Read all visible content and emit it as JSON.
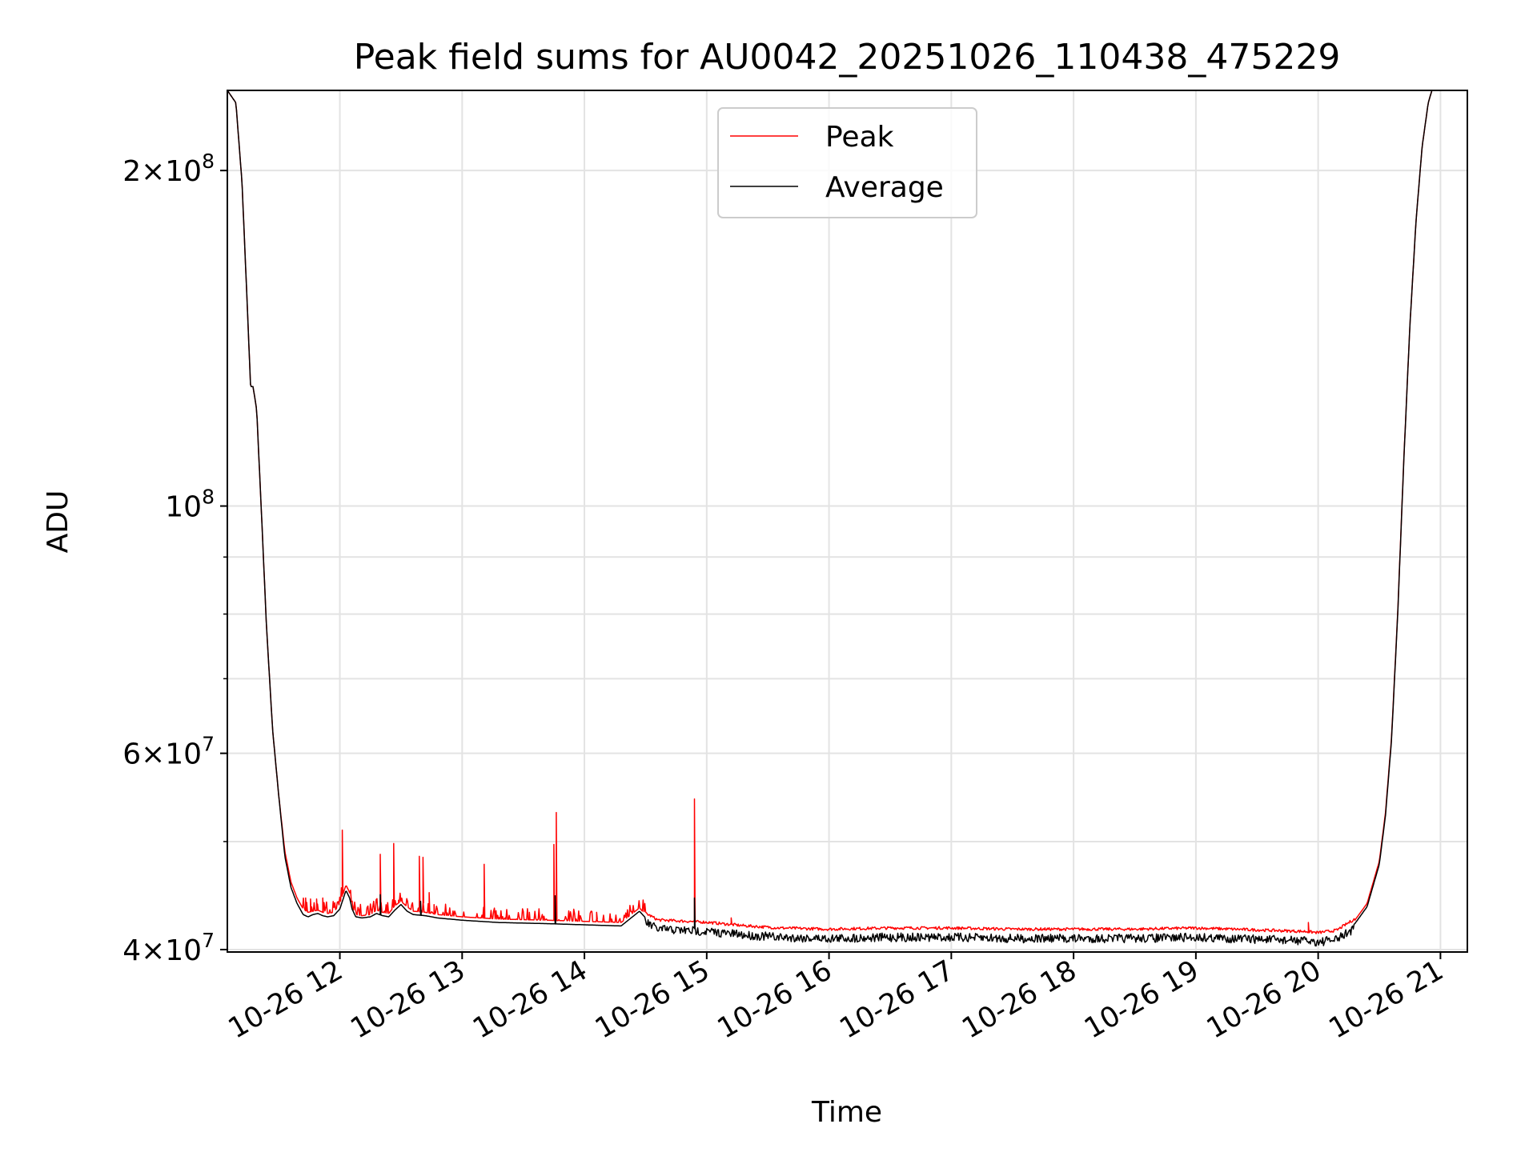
{
  "chart_data": {
    "type": "line",
    "title": "Peak field sums for AU0042_20251026_110438_475229",
    "xlabel": "Time",
    "ylabel": "ADU",
    "yscale": "log",
    "xlim": [
      11.08,
      21.22
    ],
    "ylim": [
      39800000,
      236000000
    ],
    "grid": true,
    "legend": {
      "placement": "upper-center",
      "entries": [
        "Peak",
        "Average"
      ]
    },
    "x_ticks": [
      {
        "value": 12,
        "label": "10-26 12"
      },
      {
        "value": 13,
        "label": "10-26 13"
      },
      {
        "value": 14,
        "label": "10-26 14"
      },
      {
        "value": 15,
        "label": "10-26 15"
      },
      {
        "value": 16,
        "label": "10-26 16"
      },
      {
        "value": 17,
        "label": "10-26 17"
      },
      {
        "value": 18,
        "label": "10-26 18"
      },
      {
        "value": 19,
        "label": "10-26 19"
      },
      {
        "value": 20,
        "label": "10-26 20"
      },
      {
        "value": 21,
        "label": "10-26 21"
      }
    ],
    "y_major_ticks": [
      {
        "value": 40000000,
        "mant": "4",
        "exp": "7"
      },
      {
        "value": 60000000,
        "mant": "6",
        "exp": "7"
      },
      {
        "value": 100000000,
        "mant": "",
        "exp": "8"
      },
      {
        "value": 200000000,
        "mant": "2",
        "exp": "8"
      }
    ],
    "y_minor_ticks": [
      50000000,
      70000000,
      80000000,
      90000000
    ],
    "series": [
      {
        "name": "Peak",
        "color": "#ff0000",
        "x": [
          11.08,
          11.15,
          11.2,
          11.25,
          11.27,
          11.29,
          11.32,
          11.36,
          11.4,
          11.45,
          11.5,
          11.55,
          11.6,
          11.65,
          11.7,
          11.74,
          11.78,
          11.82,
          11.86,
          11.9,
          11.95,
          12.0,
          12.05,
          12.08,
          12.1,
          12.13,
          12.18,
          12.25,
          12.3,
          12.35,
          12.4,
          12.45,
          12.5,
          12.55,
          12.6,
          12.7,
          12.8,
          13.0,
          13.3,
          13.7,
          14.0,
          14.3,
          14.45,
          14.5,
          14.6,
          14.8,
          15.0,
          15.3,
          15.6,
          16.0,
          16.5,
          17.0,
          17.5,
          18.0,
          18.5,
          19.0,
          19.3,
          19.6,
          19.9,
          20.0,
          20.15,
          20.3,
          20.4,
          20.5,
          20.55,
          20.6,
          20.65,
          20.7,
          20.75,
          20.8,
          20.85,
          20.9,
          20.93,
          20.96,
          21.22
        ],
        "y": [
          236000000,
          230000000,
          195000000,
          145000000,
          128000000,
          128000000,
          122000000,
          98000000,
          78000000,
          63000000,
          55000000,
          49000000,
          46000000,
          44500000,
          43500000,
          43200000,
          43300000,
          43400000,
          43200000,
          43100000,
          43200000,
          44000000,
          45700000,
          45000000,
          43800000,
          43000000,
          42900000,
          43000000,
          43400000,
          43200000,
          43100000,
          43800000,
          44200000,
          43700000,
          43300000,
          43200000,
          43000000,
          42800000,
          42600000,
          42500000,
          42400000,
          42300000,
          43600000,
          43000000,
          42400000,
          42300000,
          42200000,
          41900000,
          41700000,
          41600000,
          41700000,
          41700000,
          41600000,
          41600000,
          41600000,
          41700000,
          41600000,
          41500000,
          41400000,
          41300000,
          41500000,
          42500000,
          44000000,
          48000000,
          53000000,
          62000000,
          80000000,
          110000000,
          145000000,
          180000000,
          210000000,
          230000000,
          236000000,
          236000000,
          236000000
        ],
        "spikes": [
          {
            "x": 11.72,
            "y": 44500000
          },
          {
            "x": 11.76,
            "y": 44400000
          },
          {
            "x": 11.81,
            "y": 44400000
          },
          {
            "x": 11.86,
            "y": 44500000
          },
          {
            "x": 12.02,
            "y": 51200000
          },
          {
            "x": 12.33,
            "y": 48700000
          },
          {
            "x": 12.44,
            "y": 49800000
          },
          {
            "x": 12.48,
            "y": 44300000
          },
          {
            "x": 12.65,
            "y": 48500000
          },
          {
            "x": 12.68,
            "y": 48400000
          },
          {
            "x": 12.73,
            "y": 45000000
          },
          {
            "x": 12.77,
            "y": 43900000
          },
          {
            "x": 13.18,
            "y": 47700000
          },
          {
            "x": 13.55,
            "y": 43200000
          },
          {
            "x": 13.75,
            "y": 49700000
          },
          {
            "x": 13.77,
            "y": 53100000
          },
          {
            "x": 14.1,
            "y": 43200000
          },
          {
            "x": 14.38,
            "y": 43300000
          },
          {
            "x": 14.9,
            "y": 54600000
          },
          {
            "x": 15.2,
            "y": 42700000
          },
          {
            "x": 19.92,
            "y": 42300000
          }
        ]
      },
      {
        "name": "Average",
        "color": "#000000",
        "x": [
          11.08,
          11.15,
          11.2,
          11.25,
          11.27,
          11.29,
          11.32,
          11.36,
          11.4,
          11.45,
          11.5,
          11.55,
          11.6,
          11.65,
          11.7,
          11.74,
          11.78,
          11.82,
          11.86,
          11.9,
          11.95,
          12.0,
          12.05,
          12.08,
          12.1,
          12.13,
          12.18,
          12.25,
          12.3,
          12.35,
          12.4,
          12.45,
          12.5,
          12.55,
          12.6,
          12.7,
          12.8,
          13.0,
          13.3,
          13.7,
          14.0,
          14.3,
          14.45,
          14.5,
          14.6,
          14.8,
          15.0,
          15.3,
          15.6,
          16.0,
          16.5,
          17.0,
          17.5,
          18.0,
          18.5,
          19.0,
          19.3,
          19.6,
          19.9,
          20.0,
          20.15,
          20.3,
          20.4,
          20.5,
          20.55,
          20.6,
          20.65,
          20.7,
          20.75,
          20.8,
          20.85,
          20.9,
          20.93,
          20.96,
          21.22
        ],
        "y": [
          236000000,
          230000000,
          195000000,
          145000000,
          128000000,
          128000000,
          122000000,
          98000000,
          78000000,
          63000000,
          55000000,
          48500000,
          45500000,
          44000000,
          43000000,
          42800000,
          43000000,
          43100000,
          42900000,
          42800000,
          42900000,
          43500000,
          45200000,
          44500000,
          43500000,
          42800000,
          42700000,
          42800000,
          43100000,
          42900000,
          42800000,
          43400000,
          43900000,
          43300000,
          43000000,
          42900000,
          42700000,
          42500000,
          42300000,
          42200000,
          42100000,
          42000000,
          43300000,
          42700000,
          42100000,
          42000000,
          41900000,
          41600000,
          41400000,
          41300000,
          41400000,
          41400000,
          41300000,
          41300000,
          41300000,
          41400000,
          41300000,
          41200000,
          41100000,
          41000000,
          41200000,
          42200000,
          43700000,
          47700000,
          52700000,
          61700000,
          79700000,
          109700000,
          145000000,
          180000000,
          210000000,
          230000000,
          236000000,
          236000000,
          236000000
        ],
        "spikes": [
          {
            "x": 12.33,
            "y": 44800000
          },
          {
            "x": 12.66,
            "y": 44200000
          },
          {
            "x": 13.76,
            "y": 44700000
          },
          {
            "x": 14.9,
            "y": 44500000
          }
        ]
      }
    ]
  }
}
